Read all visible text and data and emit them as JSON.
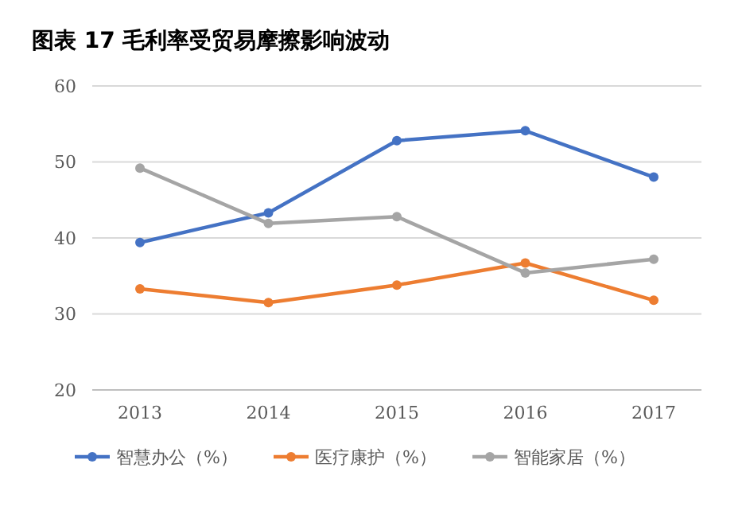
{
  "chart_data": {
    "type": "line",
    "title": "图表 17  毛利率受贸易摩擦影响波动",
    "categories": [
      "2013",
      "2014",
      "2015",
      "2016",
      "2017"
    ],
    "series": [
      {
        "name": "智慧办公（%）",
        "color": "#4472c4",
        "values": [
          39.4,
          43.3,
          52.8,
          54.1,
          48.0
        ]
      },
      {
        "name": "医疗康护（%）",
        "color": "#ed7d31",
        "values": [
          33.3,
          31.5,
          33.8,
          36.7,
          31.8
        ]
      },
      {
        "name": "智能家居（%）",
        "color": "#a5a5a5",
        "values": [
          49.2,
          41.9,
          42.8,
          35.4,
          37.2
        ]
      }
    ],
    "ylim": [
      20,
      60
    ],
    "yticks": [
      20,
      30,
      40,
      50,
      60
    ],
    "grid": "y",
    "legend": "bottom",
    "marker": "circle",
    "line_style": "solid"
  }
}
